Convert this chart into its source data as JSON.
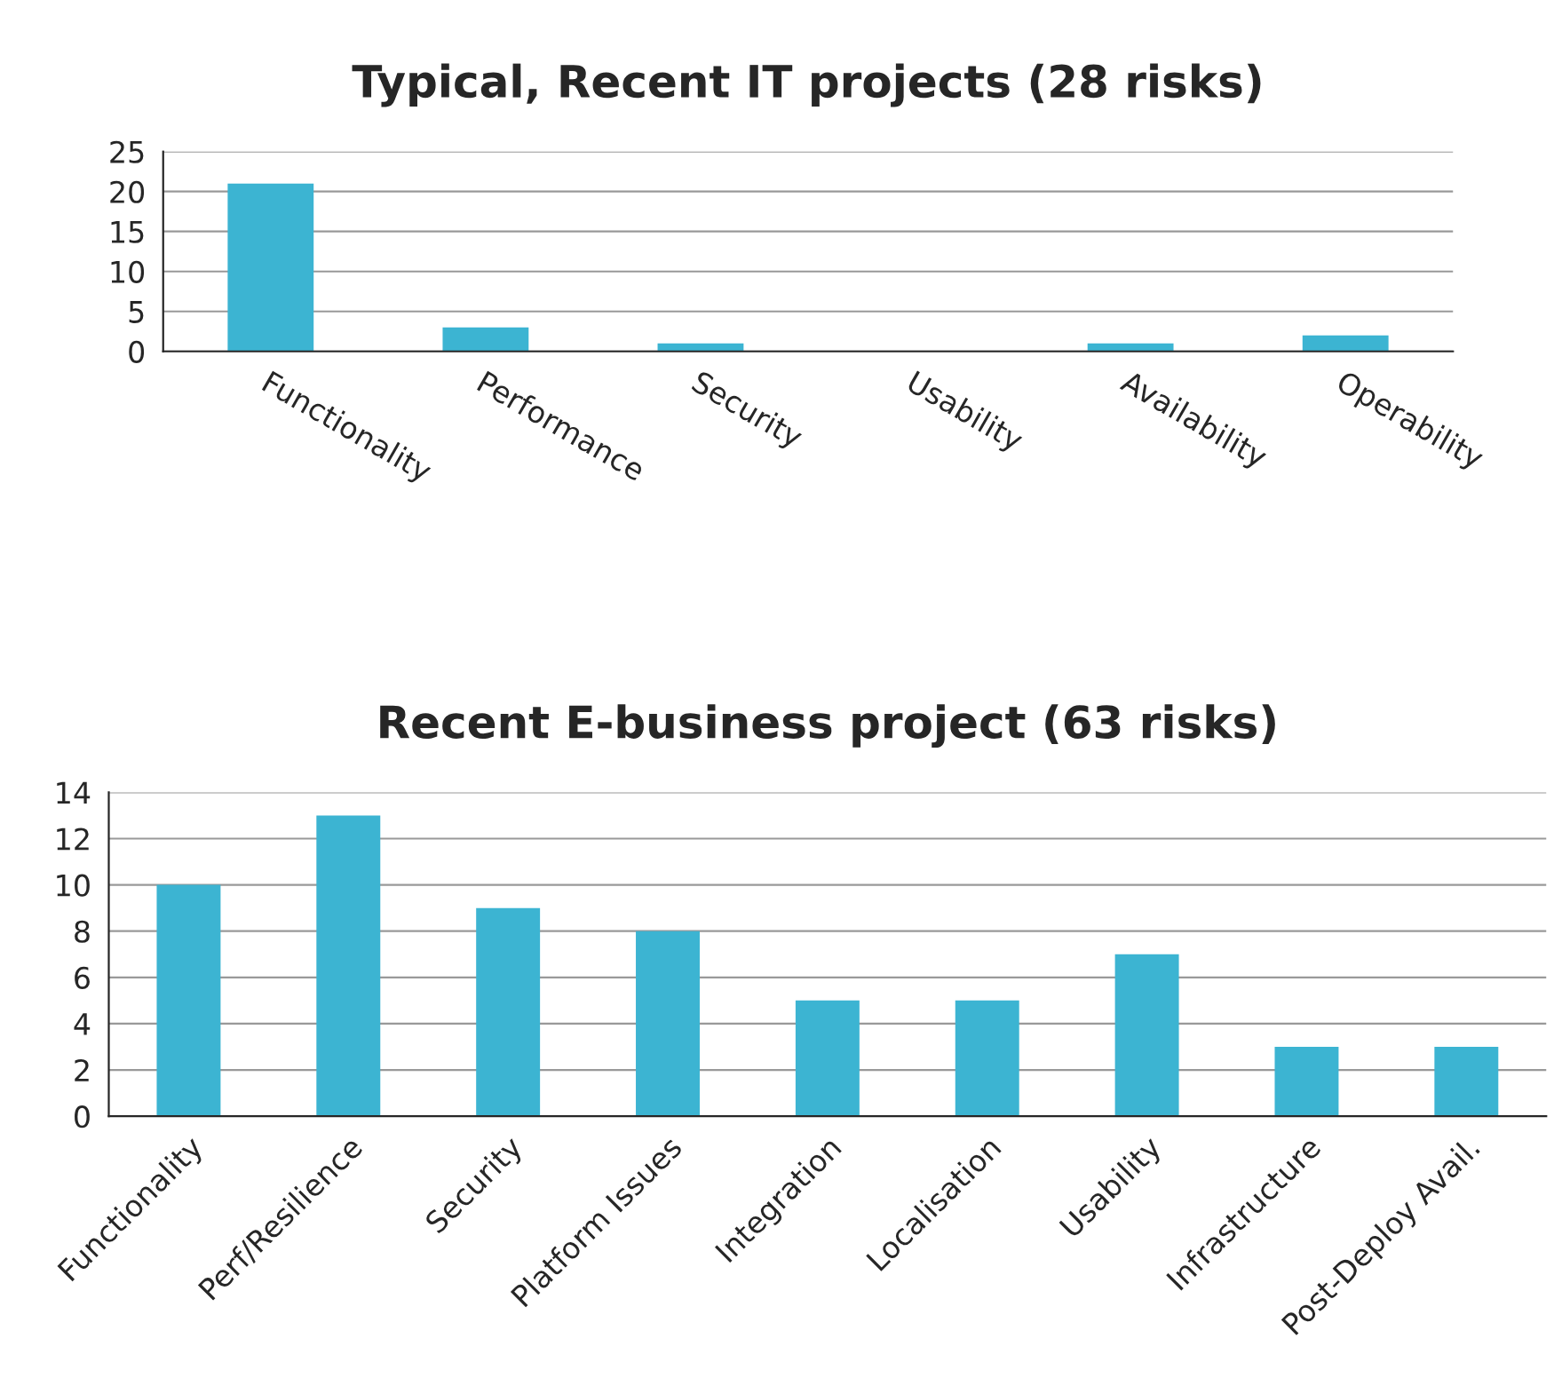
{
  "chart_data": [
    {
      "type": "bar",
      "title": "Typical, Recent IT projects (28 risks)",
      "categories": [
        "Functionality",
        "Performance",
        "Security",
        "Usability",
        "Availability",
        "Operability"
      ],
      "values": [
        21,
        3,
        1,
        0,
        1,
        2
      ],
      "color": "#3cb4d2",
      "ylim": [
        0,
        25
      ],
      "yticks": [
        0,
        5,
        10,
        15,
        20,
        25
      ],
      "grid": "y"
    },
    {
      "type": "bar",
      "title": "Recent E-business project (63 risks)",
      "categories": [
        "Functionality",
        "Perf/Resilience",
        "Security",
        "Platform Issues",
        "Integration",
        "Localisation",
        "Usability",
        "Infrastructure",
        "Post-Deploy Avail."
      ],
      "values": [
        10,
        13,
        9,
        8,
        5,
        5,
        7,
        3,
        3
      ],
      "color": "#3cb4d2",
      "ylim": [
        0,
        14
      ],
      "yticks": [
        0,
        2,
        4,
        6,
        8,
        10,
        12,
        14
      ],
      "grid": "y"
    }
  ]
}
